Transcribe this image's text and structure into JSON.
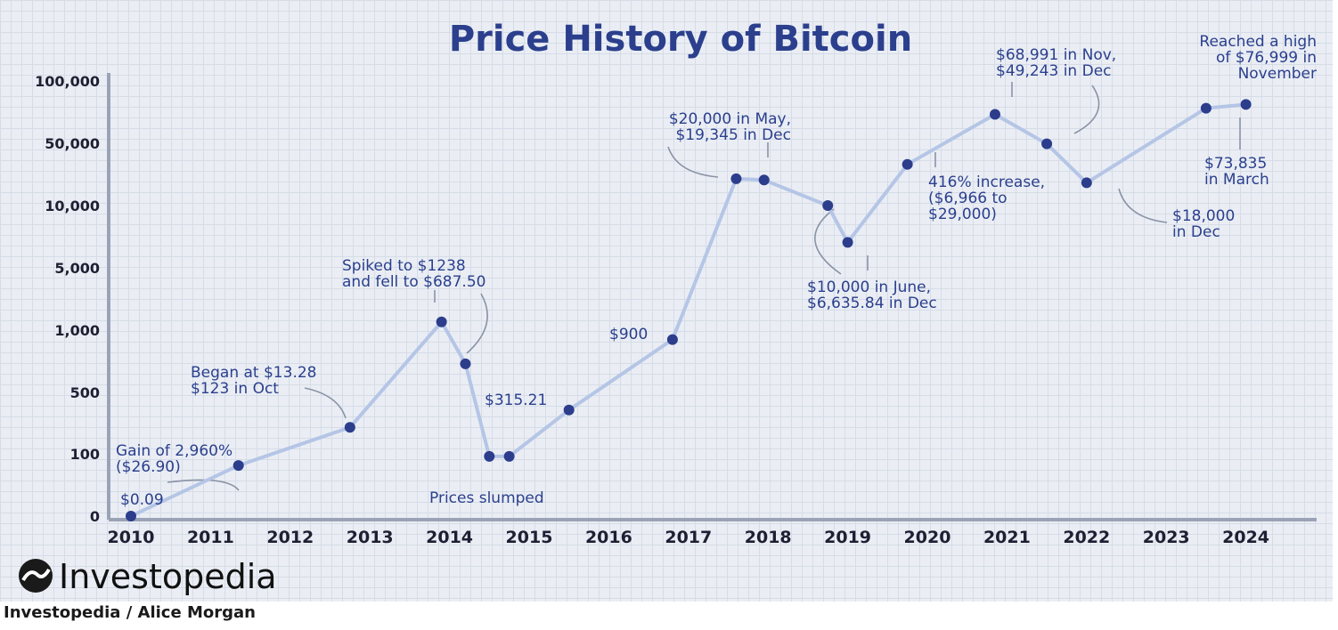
{
  "chart_data": {
    "type": "line",
    "title": "Price History of Bitcoin",
    "xlabel": "",
    "ylabel": "",
    "x_ticks": [
      "2010",
      "2011",
      "2012",
      "2013",
      "2014",
      "2015",
      "2016",
      "2017",
      "2018",
      "2019",
      "2020",
      "2021",
      "2022",
      "2023",
      "2024"
    ],
    "y_ticks": [
      "0",
      "100",
      "500",
      "1,000",
      "5,000",
      "10,000",
      "50,000",
      "100,000"
    ],
    "grid": true,
    "series": [
      {
        "values": [
          {
            "x": 2010.0,
            "y": 0.09
          },
          {
            "x": 2011.35,
            "y": 26.9
          },
          {
            "x": 2012.75,
            "y": 200
          },
          {
            "x": 2013.9,
            "y": 1238
          },
          {
            "x": 2014.2,
            "y": 687.5
          },
          {
            "x": 2014.5,
            "y": 75
          },
          {
            "x": 2014.75,
            "y": 75
          },
          {
            "x": 2015.5,
            "y": 315.21
          },
          {
            "x": 2016.8,
            "y": 900
          },
          {
            "x": 2017.6,
            "y": 20000
          },
          {
            "x": 2017.95,
            "y": 19345
          },
          {
            "x": 2018.75,
            "y": 10000
          },
          {
            "x": 2019.0,
            "y": 6635.84
          },
          {
            "x": 2019.75,
            "y": 29000
          },
          {
            "x": 2020.85,
            "y": 68991
          },
          {
            "x": 2021.5,
            "y": 49243
          },
          {
            "x": 2022.0,
            "y": 18000
          },
          {
            "x": 2023.5,
            "y": 73835
          },
          {
            "x": 2024.0,
            "y": 76999
          }
        ]
      }
    ],
    "annotations": [
      {
        "lines": [
          "$0.09"
        ]
      },
      {
        "lines": [
          "Gain of 2,960%",
          "($26.90)"
        ]
      },
      {
        "lines": [
          "Began at $13.28",
          "$123 in Oct"
        ]
      },
      {
        "lines": [
          "Spiked to $1238",
          "and fell to $687.50"
        ]
      },
      {
        "lines": [
          "Prices slumped"
        ]
      },
      {
        "lines": [
          "$315.21"
        ]
      },
      {
        "lines": [
          "$900"
        ]
      },
      {
        "lines": [
          "$20,000 in May,",
          "$19,345 in Dec"
        ]
      },
      {
        "lines": [
          "$10,000 in June,",
          "$6,635.84 in Dec"
        ]
      },
      {
        "lines": [
          "416% increase,",
          "($6,966 to",
          "$29,000)"
        ]
      },
      {
        "lines": [
          "$68,991 in Nov,",
          "$49,243 in Dec"
        ]
      },
      {
        "lines": [
          "$18,000",
          "in Dec"
        ]
      },
      {
        "lines": [
          "$73,835",
          "in March"
        ]
      },
      {
        "lines": [
          "Reached a high",
          "of $76,999 in",
          "November"
        ]
      }
    ]
  },
  "branding": {
    "logo_text": "Investopedia",
    "credit": "Investopedia / Alice Morgan"
  },
  "colors": {
    "title": "#2b3f8d",
    "series_line": "#b5c5e6",
    "points": "#2c3d8c",
    "background": "#eaeef4"
  }
}
